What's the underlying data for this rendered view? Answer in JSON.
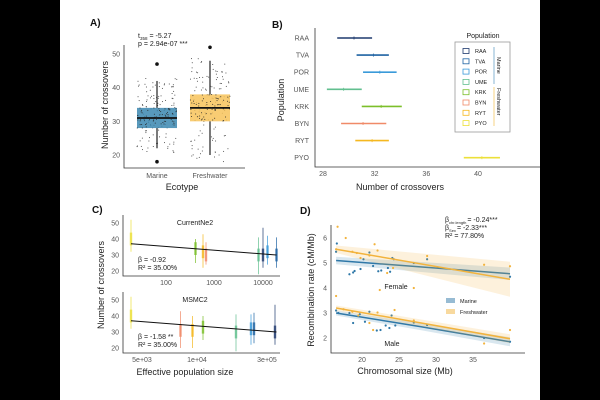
{
  "chart_data": [
    {
      "panel": "A)",
      "type": "box",
      "xlabel": "Ecotype",
      "ylabel": "Number of crossovers",
      "ylim": [
        16,
        56
      ],
      "yticks": [
        20,
        30,
        40,
        50
      ],
      "annotation": [
        "t",
        "358",
        "= -5.27",
        "p = 2.94e-07 ***"
      ],
      "categories": [
        "Marine",
        "Freshwater"
      ],
      "boxes": [
        {
          "name": "Marine",
          "q1": 28,
          "median": 31,
          "q3": 34,
          "whisker_low": 22,
          "whisker_high": 42,
          "outliers": [
            47,
            18
          ],
          "color": "#3b87b0"
        },
        {
          "name": "Freshwater",
          "q1": 30,
          "median": 34,
          "q3": 38,
          "whisker_low": 20,
          "whisker_high": 48,
          "outliers": [
            52
          ],
          "color": "#f7c35a"
        }
      ]
    },
    {
      "panel": "B)",
      "type": "errorbar",
      "xlabel": "Number of crossovers",
      "ylabel": "Population",
      "xlim": [
        27.5,
        42
      ],
      "xticks": [
        28,
        32,
        36,
        40
      ],
      "legend": {
        "title": "Population",
        "groups": [
          "Marine",
          "Freshwater"
        ],
        "placement": "top-right"
      },
      "series": [
        {
          "name": "RAA",
          "mean": 30.4,
          "low": 29.1,
          "high": 31.8,
          "color": "#1f3a6e",
          "group": "Marine"
        },
        {
          "name": "TVA",
          "mean": 31.9,
          "low": 30.6,
          "high": 33.1,
          "color": "#1f63a3",
          "group": "Marine"
        },
        {
          "name": "POR",
          "mean": 32.4,
          "low": 31.1,
          "high": 33.7,
          "color": "#3a9ad9",
          "group": "Marine"
        },
        {
          "name": "UME",
          "mean": 29.6,
          "low": 28.3,
          "high": 31.0,
          "color": "#62bf8f",
          "group": "Marine"
        },
        {
          "name": "KRK",
          "mean": 32.5,
          "low": 31.0,
          "high": 34.1,
          "color": "#7cbf2a",
          "group": "Freshwater"
        },
        {
          "name": "BYN",
          "mean": 31.1,
          "low": 29.4,
          "high": 32.9,
          "color": "#f08a68",
          "group": "Freshwater"
        },
        {
          "name": "RYT",
          "mean": 31.8,
          "low": 30.5,
          "high": 33.1,
          "color": "#f5b820",
          "group": "Freshwater"
        },
        {
          "name": "PYO",
          "mean": 40.3,
          "low": 38.9,
          "high": 41.7,
          "color": "#ece03a",
          "group": "Freshwater"
        }
      ]
    },
    {
      "panel": "C)",
      "type": "scatter",
      "xlabel": "Effective population size",
      "ylabel": "Number of crossovers",
      "ylim": [
        17,
        53
      ],
      "yticks": [
        20,
        30,
        40,
        50
      ],
      "subplots": [
        {
          "title": "CurrentNe2",
          "xticks": [
            "100",
            "1000",
            "10000"
          ],
          "annotation": [
            "β = -0.92",
            "R² = 35.00%"
          ],
          "fit": [
            37,
            30
          ],
          "pops": [
            {
              "pop": "PYO",
              "x": 0.02,
              "low": 32,
              "high": 52,
              "mid": 40
            },
            {
              "pop": "KRK",
              "x": 0.45,
              "low": 25,
              "high": 40,
              "mid": 34
            },
            {
              "pop": "RYT",
              "x": 0.5,
              "low": 22,
              "high": 43,
              "mid": 32
            },
            {
              "pop": "BYN",
              "x": 0.52,
              "low": 24,
              "high": 38,
              "mid": 30
            },
            {
              "pop": "UME",
              "x": 0.87,
              "low": 18,
              "high": 41,
              "mid": 30
            },
            {
              "pop": "RAA",
              "x": 0.9,
              "low": 22,
              "high": 47,
              "mid": 30
            },
            {
              "pop": "POR",
              "x": 0.93,
              "low": 24,
              "high": 42,
              "mid": 32
            },
            {
              "pop": "TVA",
              "x": 0.99,
              "low": 22,
              "high": 41,
              "mid": 30
            }
          ]
        },
        {
          "title": "MSMC2",
          "xticks": [
            "5e+03",
            "1e+04",
            "3e+05"
          ],
          "annotation": [
            "β = -1.58 **",
            "R² = 35.00%"
          ],
          "fit": [
            37,
            30
          ],
          "pops": [
            {
              "pop": "PYO",
              "x": 0.02,
              "low": 32,
              "high": 52,
              "mid": 40
            },
            {
              "pop": "BYN",
              "x": 0.35,
              "low": 20,
              "high": 43,
              "mid": 31
            },
            {
              "pop": "RYT",
              "x": 0.43,
              "low": 20,
              "high": 40,
              "mid": 31
            },
            {
              "pop": "KRK",
              "x": 0.5,
              "low": 25,
              "high": 40,
              "mid": 33
            },
            {
              "pop": "UME",
              "x": 0.72,
              "low": 18,
              "high": 41,
              "mid": 30
            },
            {
              "pop": "POR",
              "x": 0.82,
              "low": 22,
              "high": 41,
              "mid": 32
            },
            {
              "pop": "TVA",
              "x": 0.84,
              "low": 23,
              "high": 42,
              "mid": 32
            },
            {
              "pop": "RAA",
              "x": 0.98,
              "low": 22,
              "high": 47,
              "mid": 30
            }
          ]
        }
      ]
    },
    {
      "panel": "D)",
      "type": "line",
      "xlabel": "Chromosomal size (Mb)",
      "ylabel": "Recombination rate (cM/Mb)",
      "xlim": [
        15.5,
        40.5
      ],
      "ylim": [
        1.4,
        6.7
      ],
      "xticks": [
        20,
        25,
        30,
        35
      ],
      "yticks": [
        2,
        3,
        4,
        5,
        6
      ],
      "annotation": [
        "β",
        "chr.length",
        "= -0.24***",
        "β",
        "Sex",
        "= -2.33***",
        "R² = 77.80%"
      ],
      "labels": [
        "Female",
        "Male"
      ],
      "legend": {
        "entries": [
          "Marine",
          "Freshwater"
        ],
        "placement": "center-right"
      },
      "series": [
        {
          "name": "Marine",
          "sex": "Female",
          "color": "#2f78a8",
          "line": [
            [
              16.5,
              5.1
            ],
            [
              40,
              4.57
            ]
          ],
          "points": [
            [
              16.5,
              5.45
            ],
            [
              16.6,
              5.78
            ],
            [
              18.3,
              4.55
            ],
            [
              18.8,
              4.62
            ],
            [
              19,
              4.68
            ],
            [
              19.8,
              4.76
            ],
            [
              20.2,
              5.15
            ],
            [
              21,
              5.42
            ],
            [
              21.5,
              4.88
            ],
            [
              22.2,
              4.67
            ],
            [
              22.6,
              4.7
            ],
            [
              23.5,
              4.8
            ],
            [
              23.8,
              4.65
            ],
            [
              24.1,
              5.2
            ],
            [
              24.3,
              5.15
            ],
            [
              27,
              5.0
            ],
            [
              28.8,
              5.15
            ],
            [
              40,
              4.45
            ]
          ]
        },
        {
          "name": "Freshwater",
          "sex": "Female",
          "color": "#f2b33d",
          "line": [
            [
              16.5,
              5.55
            ],
            [
              40,
              4.35
            ]
          ],
          "points": [
            [
              16.5,
              5.55
            ],
            [
              16.7,
              6.45
            ],
            [
              17.8,
              6.0
            ],
            [
              18.7,
              5.45
            ],
            [
              19.3,
              5.4
            ],
            [
              19.8,
              5.2
            ],
            [
              21,
              5.3
            ],
            [
              21.7,
              5.75
            ],
            [
              22.1,
              5.5
            ],
            [
              22.4,
              3.92
            ],
            [
              23.4,
              4.6
            ],
            [
              24.2,
              4.8
            ],
            [
              27,
              4.0
            ],
            [
              28.8,
              5.28
            ],
            [
              36.5,
              4.93
            ],
            [
              40,
              4.87
            ]
          ]
        },
        {
          "name": "Marine",
          "sex": "Male",
          "color": "#2f78a8",
          "line": [
            [
              16.5,
              3.0
            ],
            [
              28,
              2.45
            ],
            [
              40,
              1.85
            ]
          ],
          "points": [
            [
              16.5,
              3.1
            ],
            [
              16.8,
              3.0
            ],
            [
              18.3,
              3.0
            ],
            [
              18.8,
              2.6
            ],
            [
              19.7,
              2.95
            ],
            [
              20.4,
              2.65
            ],
            [
              21,
              3.05
            ],
            [
              22,
              2.3
            ],
            [
              22.5,
              2.32
            ],
            [
              23.2,
              2.5
            ],
            [
              23.7,
              2.4
            ],
            [
              24,
              2.9
            ],
            [
              24.5,
              2.5
            ],
            [
              27,
              2.62
            ],
            [
              28.8,
              2.52
            ],
            [
              36.5,
              2.0
            ],
            [
              40,
              1.85
            ]
          ]
        },
        {
          "name": "Freshwater",
          "sex": "Male",
          "color": "#f2b33d",
          "line": [
            [
              16.5,
              3.2
            ],
            [
              28,
              2.6
            ],
            [
              40,
              1.97
            ]
          ],
          "points": [
            [
              16.5,
              3.68
            ],
            [
              17.5,
              3.15
            ],
            [
              18.7,
              3.05
            ],
            [
              19.5,
              2.9
            ],
            [
              21,
              2.6
            ],
            [
              21.5,
              2.32
            ],
            [
              22.1,
              3.02
            ],
            [
              24.4,
              3.12
            ],
            [
              27,
              2.7
            ],
            [
              36.5,
              1.78
            ],
            [
              40,
              2.32
            ]
          ]
        }
      ]
    }
  ]
}
